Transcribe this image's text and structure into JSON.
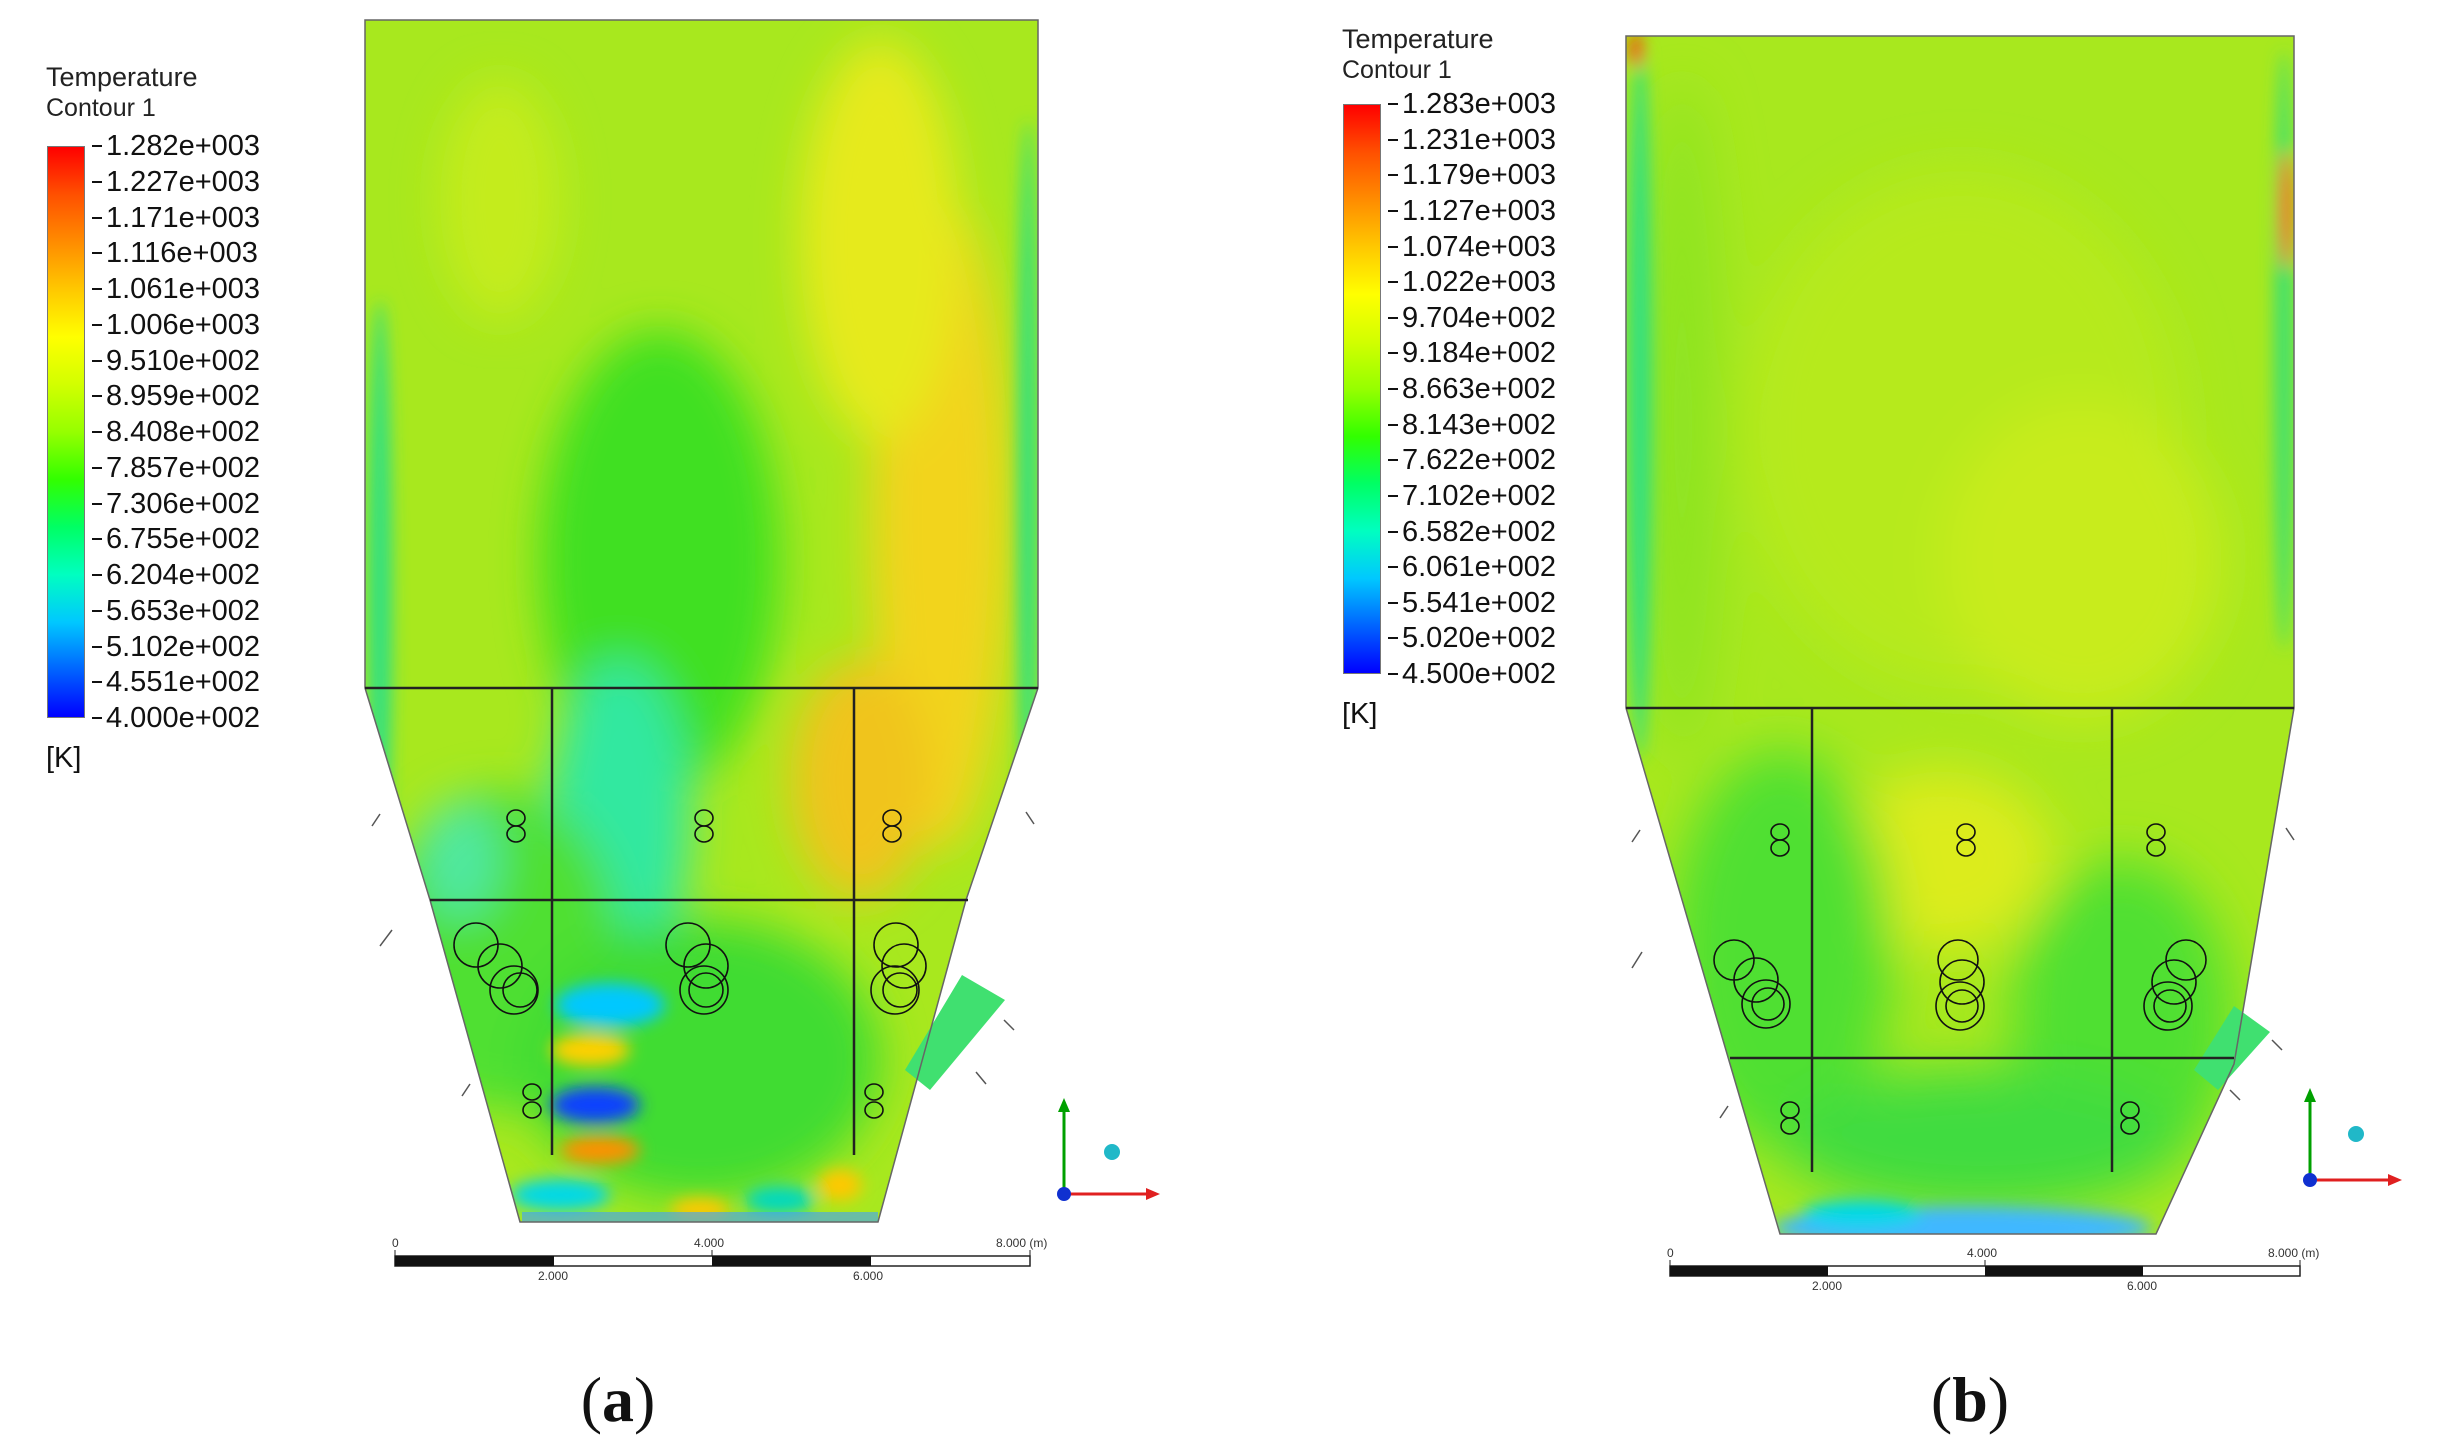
{
  "panels": [
    {
      "id": "a",
      "legend": {
        "title": "Temperature",
        "subtitle": "Contour 1",
        "unit": "[K]",
        "ticks": [
          "1.282e+003",
          "1.227e+003",
          "1.171e+003",
          "1.116e+003",
          "1.061e+003",
          "1.006e+003",
          "9.510e+002",
          "8.959e+002",
          "8.408e+002",
          "7.857e+002",
          "7.306e+002",
          "6.755e+002",
          "6.204e+002",
          "5.653e+002",
          "5.102e+002",
          "4.551e+002",
          "4.000e+002"
        ],
        "range_K": [
          400.0,
          1282.0
        ]
      },
      "scale_bar": {
        "top_labels": [
          "0",
          "4.000",
          "8.000 (m)"
        ],
        "bottom_labels": [
          "2.000",
          "6.000"
        ]
      },
      "caption": {
        "open": "(",
        "letter": "a",
        "close": ")"
      },
      "colors": {
        "background_field": "#a6e61e",
        "hot_side": "#f4d21a"
      }
    },
    {
      "id": "b",
      "legend": {
        "title": "Temperature",
        "subtitle": "Contour 1",
        "unit": "[K]",
        "ticks": [
          "1.283e+003",
          "1.231e+003",
          "1.179e+003",
          "1.127e+003",
          "1.074e+003",
          "1.022e+003",
          "9.704e+002",
          "9.184e+002",
          "8.663e+002",
          "8.143e+002",
          "7.622e+002",
          "7.102e+002",
          "6.582e+002",
          "6.061e+002",
          "5.541e+002",
          "5.020e+002",
          "4.500e+002"
        ],
        "range_K": [
          450.0,
          1283.0
        ]
      },
      "scale_bar": {
        "top_labels": [
          "0",
          "4.000",
          "8.000 (m)"
        ],
        "bottom_labels": [
          "2.000",
          "6.000"
        ]
      },
      "caption": {
        "open": "(",
        "letter": "b",
        "close": ")"
      },
      "colors": {
        "background_field": "#a6e61e",
        "hot_side": "#dfe81c"
      }
    }
  ],
  "colormap": [
    "#0000ff",
    "#0064ff",
    "#00c8ff",
    "#00ffc0",
    "#00ff64",
    "#32ff00",
    "#96ff00",
    "#d2ff00",
    "#ffff00",
    "#ffc800",
    "#ff8c00",
    "#ff5000",
    "#ff0000"
  ]
}
